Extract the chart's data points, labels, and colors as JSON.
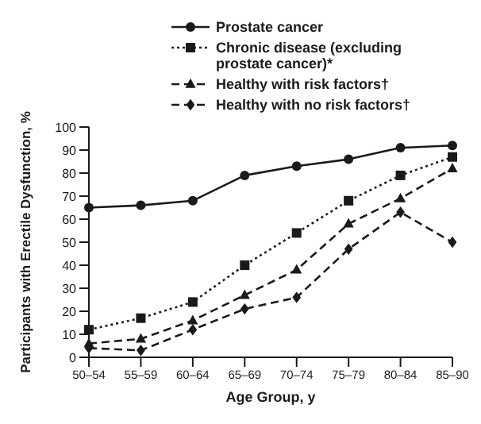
{
  "chart_data": {
    "type": "line",
    "categories": [
      "50–54",
      "55–59",
      "60–64",
      "65–69",
      "70–74",
      "75–79",
      "80–84",
      "85–90"
    ],
    "series": [
      {
        "name": "Prostate cancer",
        "color": "#1a1a1a",
        "marker": "circle",
        "line_style": "solid",
        "values": [
          65,
          66,
          68,
          79,
          83,
          86,
          91,
          92
        ]
      },
      {
        "name": "Chronic disease (excluding prostate cancer)*",
        "color": "#1a1a1a",
        "marker": "square",
        "line_style": "dotted",
        "values": [
          12,
          17,
          24,
          40,
          54,
          68,
          79,
          87
        ]
      },
      {
        "name": "Healthy with risk factors†",
        "color": "#1a1a1a",
        "marker": "triangle",
        "line_style": "dashed",
        "values": [
          6,
          8,
          16,
          27,
          38,
          58,
          69,
          82
        ]
      },
      {
        "name": "Healthy with no risk factors†",
        "color": "#1a1a1a",
        "marker": "diamond",
        "line_style": "dashed",
        "values": [
          4,
          3,
          12,
          21,
          26,
          47,
          63,
          50
        ]
      }
    ],
    "xlabel": "Age Group, y",
    "ylabel": "Participants with Erectile Dysfunction, %",
    "ylim": [
      0,
      100
    ],
    "yticks": [
      0,
      10,
      20,
      30,
      40,
      50,
      60,
      70,
      80,
      90,
      100
    ],
    "grid": false,
    "legend": "top right"
  }
}
